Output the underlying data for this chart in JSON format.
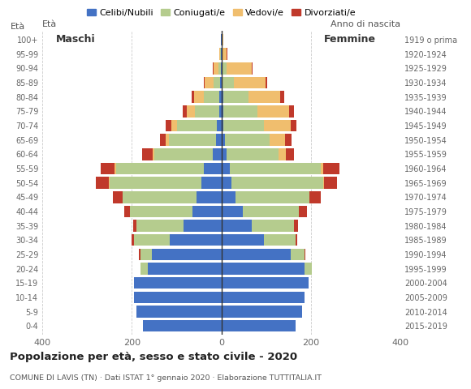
{
  "age_groups": [
    "100+",
    "95-99",
    "90-94",
    "85-89",
    "80-84",
    "75-79",
    "70-74",
    "65-69",
    "60-64",
    "55-59",
    "50-54",
    "45-49",
    "40-44",
    "35-39",
    "30-34",
    "25-29",
    "20-24",
    "15-19",
    "10-14",
    "5-9",
    "0-4"
  ],
  "birth_years": [
    "1919 o prima",
    "1920-1924",
    "1925-1929",
    "1930-1934",
    "1935-1939",
    "1940-1944",
    "1945-1949",
    "1950-1954",
    "1955-1959",
    "1960-1964",
    "1965-1969",
    "1970-1974",
    "1975-1979",
    "1980-1984",
    "1985-1989",
    "1990-1994",
    "1995-1999",
    "2000-2004",
    "2005-2009",
    "2010-2014",
    "2015-2019"
  ],
  "colors": {
    "celibe": "#4472C4",
    "coniugato": "#B5CC8E",
    "vedovo": "#F0BE6E",
    "divorziato": "#C0392B"
  },
  "males": {
    "celibe": [
      1,
      1,
      1,
      2,
      4,
      5,
      10,
      12,
      20,
      40,
      45,
      55,
      65,
      85,
      115,
      155,
      165,
      195,
      195,
      190,
      175
    ],
    "coniugato": [
      0,
      2,
      5,
      15,
      35,
      55,
      90,
      105,
      130,
      195,
      205,
      165,
      140,
      105,
      80,
      25,
      15,
      0,
      0,
      0,
      0
    ],
    "vedovo": [
      0,
      2,
      12,
      20,
      22,
      18,
      12,
      8,
      3,
      3,
      2,
      0,
      0,
      0,
      0,
      0,
      0,
      0,
      0,
      0,
      0
    ],
    "divorziato": [
      0,
      0,
      2,
      3,
      5,
      8,
      12,
      12,
      25,
      32,
      28,
      22,
      12,
      8,
      6,
      5,
      0,
      0,
      0,
      0,
      0
    ]
  },
  "females": {
    "celibe": [
      1,
      1,
      2,
      3,
      5,
      5,
      5,
      8,
      12,
      18,
      22,
      32,
      48,
      68,
      95,
      155,
      185,
      195,
      185,
      180,
      165
    ],
    "coniugato": [
      0,
      2,
      10,
      25,
      55,
      75,
      90,
      100,
      115,
      205,
      205,
      165,
      125,
      95,
      70,
      30,
      18,
      0,
      0,
      0,
      0
    ],
    "vedovo": [
      3,
      8,
      55,
      70,
      72,
      72,
      60,
      35,
      18,
      5,
      3,
      0,
      0,
      0,
      0,
      0,
      0,
      0,
      0,
      0,
      0
    ],
    "divorziato": [
      0,
      2,
      3,
      5,
      8,
      10,
      12,
      14,
      18,
      35,
      28,
      25,
      18,
      8,
      4,
      2,
      0,
      0,
      0,
      0,
      0
    ]
  },
  "xlim": 400,
  "title": "Popolazione per età, sesso e stato civile - 2020",
  "subtitle": "COMUNE DI LAVIS (TN) · Dati ISTAT 1° gennaio 2020 · Elaborazione TUTTITALIA.IT",
  "legend_labels": [
    "Celibi/Nubili",
    "Coniugati/e",
    "Vedovi/e",
    "Divorziati/e"
  ],
  "bg_color": "#ffffff",
  "bar_height": 0.82
}
